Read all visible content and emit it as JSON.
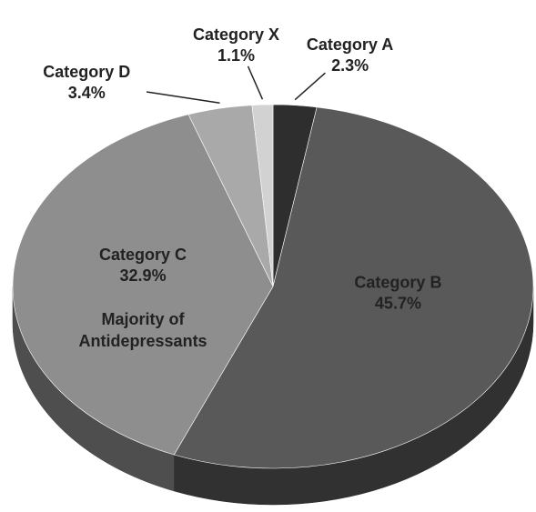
{
  "chart_data": {
    "type": "pie",
    "categories": [
      "Category A",
      "Category B",
      "Category C",
      "Category D",
      "Category X"
    ],
    "values": [
      2.3,
      45.7,
      32.9,
      3.4,
      1.1
    ],
    "value_labels": [
      "2.3%",
      "45.7%",
      "32.9%",
      "3.4%",
      "1.1%"
    ],
    "colors": [
      "#2e2e2e",
      "#595959",
      "#8e8e8e",
      "#a9a9a9",
      "#d2d2d2"
    ],
    "annotation": {
      "category_index": 2,
      "lines": [
        "Majority of",
        "Antidepressants"
      ]
    }
  }
}
